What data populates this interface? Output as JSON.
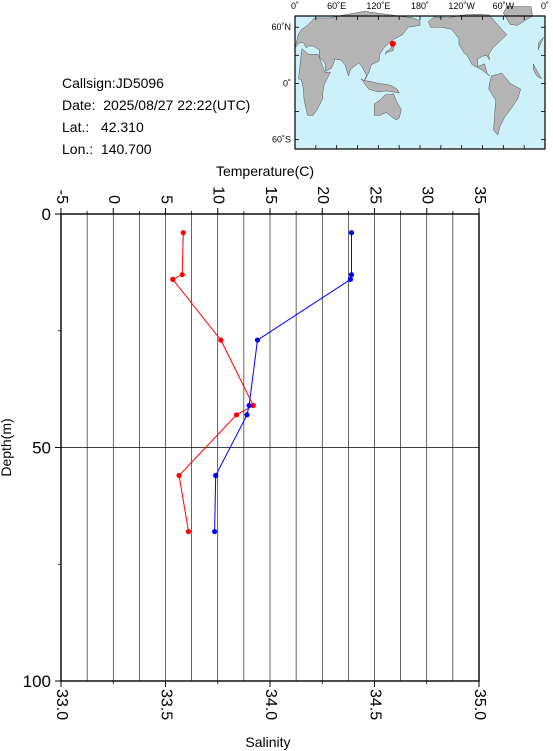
{
  "station": {
    "callsign_label": "Callsign:",
    "callsign": "JD5096",
    "date_label": "Date:",
    "date": "2025/08/27 22:22(UTC)",
    "lat_label": "Lat.:",
    "lat": "42.310",
    "lon_label": "Lon.:",
    "lon": "140.700"
  },
  "map": {
    "lon_ticks": [
      "0˚",
      "60˚E",
      "120˚E",
      "180˚",
      "120˚W",
      "60˚W",
      "0˚"
    ],
    "lat_ticks": [
      "60˚N",
      "0˚",
      "60˚S"
    ],
    "marker": {
      "lat": 42.31,
      "lon": 140.7
    },
    "ocean_color": "#cdf1fb",
    "land_color": "#b4b4b4",
    "marker_color": "#ff0000"
  },
  "chart_data": {
    "type": "line",
    "top_axis": {
      "label": "Temperature(C)",
      "range": [
        -5,
        35
      ],
      "ticks": [
        "-5",
        "0",
        "5",
        "10",
        "15",
        "20",
        "25",
        "30",
        "35"
      ]
    },
    "bottom_axis": {
      "label": "Salinity",
      "range": [
        33.0,
        35.0
      ],
      "ticks": [
        "33.0",
        "33.5",
        "34.0",
        "34.5",
        "35.0"
      ]
    },
    "y_axis": {
      "label": "Depth(m)",
      "range": [
        0,
        100
      ],
      "inverted": true,
      "ticks": [
        "0",
        "50",
        "100"
      ]
    },
    "grid": true,
    "series": [
      {
        "quantity": "temperature",
        "axis": "top",
        "color": "#ff0000",
        "points": [
          {
            "depth": 4,
            "value": 6.7
          },
          {
            "depth": 13,
            "value": 6.6
          },
          {
            "depth": 14,
            "value": 5.7
          },
          {
            "depth": 27,
            "value": 10.3
          },
          {
            "depth": 41,
            "value": 13.4
          },
          {
            "depth": 43,
            "value": 11.8
          },
          {
            "depth": 56,
            "value": 6.3
          },
          {
            "depth": 68,
            "value": 7.2
          }
        ]
      },
      {
        "quantity": "salinity",
        "axis": "bottom",
        "color": "#0000ff",
        "points": [
          {
            "depth": 4,
            "value": 34.39
          },
          {
            "depth": 13,
            "value": 34.39
          },
          {
            "depth": 14,
            "value": 34.385
          },
          {
            "depth": 27,
            "value": 33.94
          },
          {
            "depth": 41,
            "value": 33.9
          },
          {
            "depth": 43,
            "value": 33.89
          },
          {
            "depth": 56,
            "value": 33.74
          },
          {
            "depth": 68,
            "value": 33.735
          }
        ]
      }
    ]
  }
}
